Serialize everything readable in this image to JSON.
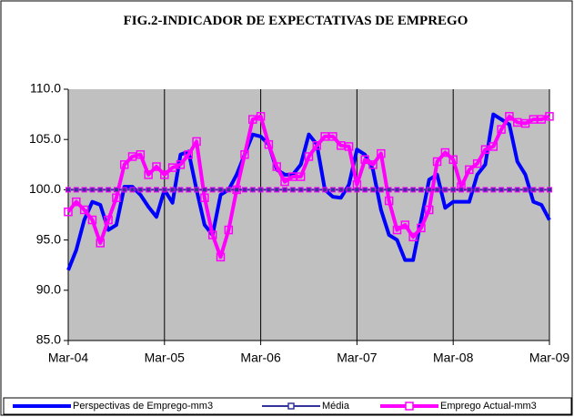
{
  "chart_data": {
    "type": "line",
    "title": "FIG.2-INDICADOR DE EXPECTATIVAS DE EMPREGO",
    "categories": [
      "Mar-04",
      null,
      null,
      null,
      null,
      null,
      null,
      null,
      null,
      null,
      null,
      null,
      "Mar-05",
      null,
      null,
      null,
      null,
      null,
      null,
      null,
      null,
      null,
      null,
      null,
      "Mar-06",
      null,
      null,
      null,
      null,
      null,
      null,
      null,
      null,
      null,
      null,
      null,
      "Mar-07",
      null,
      null,
      null,
      null,
      null,
      null,
      null,
      null,
      null,
      null,
      null,
      "Mar-08",
      null,
      null,
      null,
      null,
      null,
      null,
      null,
      null,
      null,
      null,
      null,
      "Mar-09"
    ],
    "series": [
      {
        "name": "Perspectivas de Emprego-mm3",
        "color": "#0000ff",
        "values": [
          92,
          94,
          97,
          98.8,
          98.5,
          96,
          96.5,
          100.3,
          100.3,
          99.5,
          98.3,
          97.3,
          100,
          98.7,
          103.5,
          103.8,
          100,
          96.5,
          95.5,
          99.5,
          100,
          101.5,
          103.5,
          105.5,
          105.3,
          104.5,
          102,
          101.5,
          101.5,
          102.5,
          105.5,
          104.5,
          100,
          99.3,
          99.2,
          100.5,
          104,
          103.5,
          102,
          98,
          95.5,
          95,
          93,
          93,
          97,
          101,
          101.5,
          98.2,
          98.8,
          98.8,
          98.8,
          101.5,
          102.5,
          107.5,
          107,
          106.5,
          102.8,
          101.5,
          98.8,
          98.5,
          97
        ]
      },
      {
        "name": "Média",
        "color": "#333399",
        "values": [
          100,
          100,
          100,
          100,
          100,
          100,
          100,
          100,
          100,
          100,
          100,
          100,
          100,
          100,
          100,
          100,
          100,
          100,
          100,
          100,
          100,
          100,
          100,
          100,
          100,
          100,
          100,
          100,
          100,
          100,
          100,
          100,
          100,
          100,
          100,
          100,
          100,
          100,
          100,
          100,
          100,
          100,
          100,
          100,
          100,
          100,
          100,
          100,
          100,
          100,
          100,
          100,
          100,
          100,
          100,
          100,
          100,
          100,
          100,
          100,
          100
        ]
      },
      {
        "name": "Emprego Actual-mm3",
        "color": "#ff00ff",
        "values": [
          97.8,
          98.8,
          98,
          97,
          94.7,
          97,
          99.2,
          102.5,
          103.3,
          103.5,
          101.5,
          102.3,
          101.5,
          102.2,
          102.5,
          103.5,
          104.8,
          99.2,
          95.5,
          93.3,
          96,
          100,
          103.5,
          107,
          107.3,
          104.5,
          102.3,
          100.8,
          101.3,
          101.3,
          103.3,
          104.4,
          105.3,
          105.3,
          104.4,
          104.3,
          100.5,
          103,
          102.5,
          103.6,
          98.9,
          96,
          96.5,
          95.3,
          96.2,
          98,
          102.8,
          103.7,
          103,
          100.3,
          102,
          102.6,
          104,
          104.3,
          106,
          107.3,
          106.7,
          106.6,
          107,
          107,
          107.3
        ]
      }
    ],
    "ylim": [
      85,
      110
    ],
    "yticks": [
      {
        "value": 85,
        "label": "85.0"
      },
      {
        "value": 90,
        "label": "90.0"
      },
      {
        "value": 95,
        "label": "95.0"
      },
      {
        "value": 100,
        "label": "100.0"
      },
      {
        "value": 105,
        "label": "105.0"
      },
      {
        "value": 110,
        "label": "110.0"
      }
    ],
    "plot_background": "#c0c0c0",
    "legend": "bottom"
  }
}
